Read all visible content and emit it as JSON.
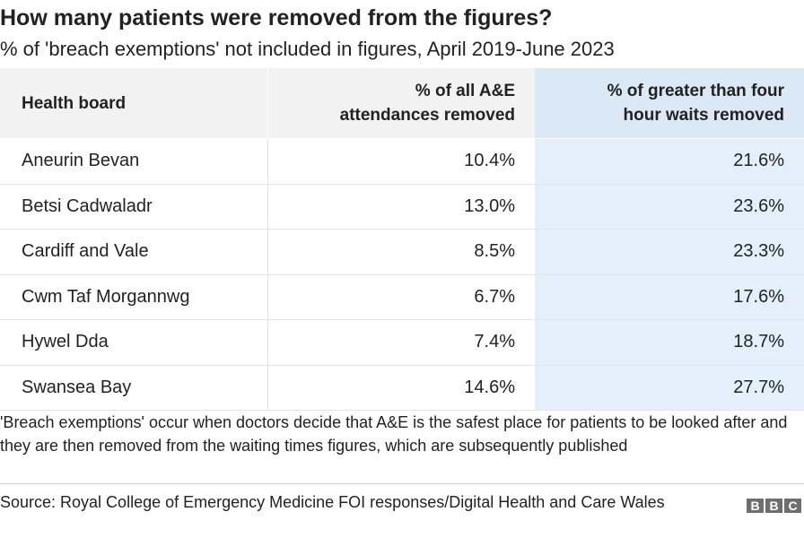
{
  "title": "How many patients were removed from the figures?",
  "subtitle": "% of 'breach exemptions' not included in figures, April 2019-June 2023",
  "chart_data": {
    "type": "table",
    "columns": [
      "Health board",
      "% of all A&E attendances removed",
      "% of greater than four hour waits removed"
    ],
    "header_lines": {
      "board": "Health board",
      "all_line1": "% of all A&E",
      "all_line2": "attendances removed",
      "four_line1": "% of greater than four",
      "four_line2": "hour waits removed"
    },
    "rows": [
      {
        "board": "Aneurin Bevan",
        "all": "10.4%",
        "four": "21.6%"
      },
      {
        "board": "Betsi Cadwaladr",
        "all": "13.0%",
        "four": "23.6%"
      },
      {
        "board": "Cardiff and Vale",
        "all": "8.5%",
        "four": "23.3%"
      },
      {
        "board": "Cwm Taf Morgannwg",
        "all": "6.7%",
        "four": "17.6%"
      },
      {
        "board": "Hywel Dda",
        "all": "7.4%",
        "four": "18.7%"
      },
      {
        "board": "Swansea Bay",
        "all": "14.6%",
        "four": "27.7%"
      }
    ],
    "values_all": [
      10.4,
      13.0,
      8.5,
      6.7,
      7.4,
      14.6
    ],
    "values_four": [
      21.6,
      23.6,
      23.3,
      17.6,
      18.7,
      27.7
    ]
  },
  "note": "'Breach exemptions' occur when doctors decide that A&E is the safest place for patients to be looked after and they are then removed from the waiting times figures, which are subsequently published",
  "source": "Source: Royal College of Emergency Medicine FOI responses/Digital Health and Care Wales",
  "logo": {
    "letters": [
      "B",
      "B",
      "C"
    ]
  },
  "colors": {
    "header_bg": "#f2f2f2",
    "highlight_header_bg": "#dbe8f5",
    "highlight_col_bg": "#e3effa",
    "text": "#222222"
  }
}
